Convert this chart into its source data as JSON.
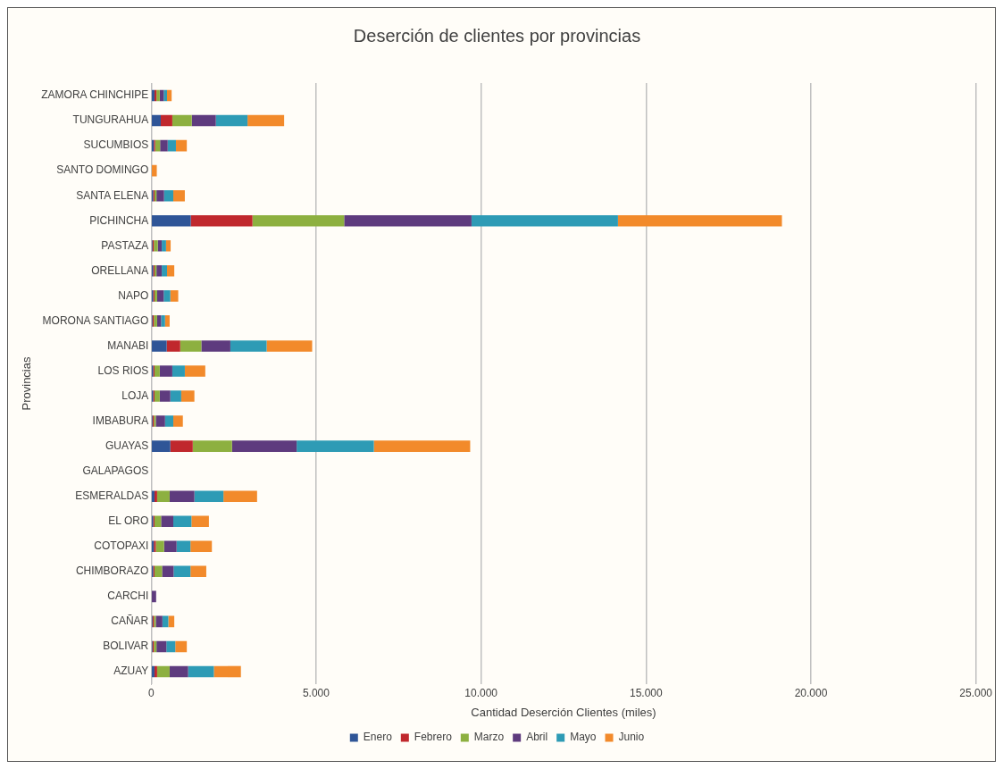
{
  "chart_data": {
    "type": "bar",
    "orientation": "horizontal",
    "stacked": true,
    "title": "Deserción de clientes por provincias",
    "xlabel": "Cantidad Deserción Clientes (miles)",
    "ylabel": "Provincias",
    "categories": [
      "ZAMORA CHINCHIPE",
      "TUNGURAHUA",
      "SUCUMBIOS",
      "SANTO DOMINGO",
      "SANTA ELENA",
      "PICHINCHA",
      "PASTAZA",
      "ORELLANA",
      "NAPO",
      "MORONA SANTIAGO",
      "MANABI",
      "LOS RIOS",
      "LOJA",
      "IMBABURA",
      "GUAYAS",
      "GALAPAGOS",
      "ESMERALDAS",
      "EL ORO",
      "COTOPAXI",
      "CHIMBORAZO",
      "CARCHI",
      "CAÑAR",
      "BOLIVAR",
      "AZUAY"
    ],
    "series": [
      {
        "name": "Enero",
        "color": "#2f5597",
        "values": [
          100,
          290,
          80,
          0,
          60,
          1200,
          40,
          60,
          60,
          40,
          470,
          60,
          60,
          40,
          580,
          0,
          100,
          60,
          80,
          60,
          0,
          40,
          40,
          100
        ]
      },
      {
        "name": "Febrero",
        "color": "#c0282d",
        "values": [
          60,
          350,
          40,
          0,
          40,
          1870,
          40,
          40,
          40,
          40,
          410,
          40,
          40,
          40,
          680,
          0,
          80,
          40,
          60,
          40,
          0,
          40,
          40,
          80
        ]
      },
      {
        "name": "Marzo",
        "color": "#8db040",
        "values": [
          100,
          590,
          150,
          0,
          60,
          2780,
          120,
          60,
          80,
          100,
          640,
          160,
          160,
          60,
          1190,
          0,
          380,
          200,
          250,
          230,
          0,
          60,
          80,
          380
        ]
      },
      {
        "name": "Abril",
        "color": "#5e3b7e",
        "values": [
          120,
          730,
          230,
          0,
          230,
          3860,
          120,
          160,
          200,
          120,
          880,
          380,
          320,
          280,
          1960,
          0,
          750,
          370,
          380,
          350,
          150,
          200,
          300,
          560
        ]
      },
      {
        "name": "Mayo",
        "color": "#2e9bb5",
        "values": [
          100,
          960,
          250,
          0,
          280,
          4440,
          130,
          160,
          200,
          120,
          1100,
          380,
          330,
          250,
          2340,
          0,
          880,
          550,
          420,
          510,
          0,
          180,
          270,
          780
        ]
      },
      {
        "name": "Junio",
        "color": "#f28a2b",
        "values": [
          140,
          1110,
          330,
          170,
          350,
          4970,
          140,
          220,
          240,
          140,
          1380,
          620,
          400,
          290,
          2920,
          0,
          1020,
          530,
          650,
          480,
          0,
          180,
          350,
          820
        ]
      }
    ],
    "xlim": [
      0,
      25000
    ],
    "xticks": [
      0,
      {
        "value": 5000,
        "label": "5.000"
      },
      {
        "value": 10000,
        "label": "10.000"
      },
      {
        "value": 15000,
        "label": "15.000"
      },
      {
        "value": 20000,
        "label": "20.000"
      },
      {
        "value": 25000,
        "label": "25.000"
      }
    ],
    "grid": "x",
    "legend": "bottom"
  }
}
